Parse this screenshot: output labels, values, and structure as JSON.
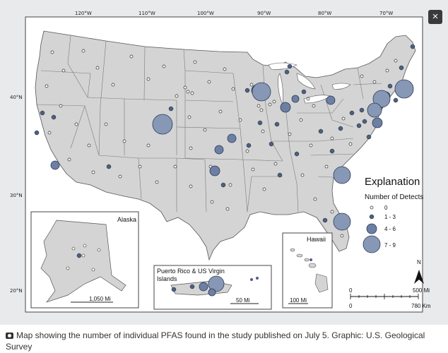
{
  "close_label": "×",
  "caption": "Map showing the number of individual PFAS found in the study published on July 5. Graphic: U.S. Geological Survey",
  "longitude_ticks": [
    "120°W",
    "110°W",
    "100°W",
    "90°W",
    "80°W",
    "70°W"
  ],
  "latitude_ticks": [
    "40°N",
    "30°N",
    "20°N"
  ],
  "legend": {
    "title": "Explanation",
    "subtitle": "Number of Detects",
    "items": [
      "0",
      "1 - 3",
      "4 - 6",
      "7 - 9"
    ]
  },
  "insets": {
    "alaska": {
      "title": "Alaska",
      "scale": "1,050 Mi"
    },
    "puerto_rico": {
      "title": "Puerto Rico & US Virgin Islands",
      "scale": "50 Mi"
    },
    "hawaii": {
      "title": "Hawaii",
      "scale": "100 Mi"
    }
  },
  "scale_bar": {
    "start_top": "0",
    "end_top": "500 Mi",
    "start_bottom": "0",
    "end_bottom": "780 Km"
  },
  "north_label": "N",
  "colors": {
    "land": "#d4d4d4",
    "dot": "#4c5f84",
    "bubble": "#8798b6",
    "border": "#555555"
  }
}
